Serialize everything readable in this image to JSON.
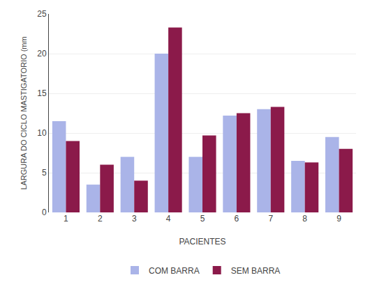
{
  "chart_data": {
    "type": "bar",
    "categories": [
      "1",
      "2",
      "3",
      "4",
      "5",
      "6",
      "7",
      "8",
      "9"
    ],
    "series": [
      {
        "name": "COM BARRA",
        "color": "#aab4e8",
        "values": [
          11.5,
          3.5,
          7.0,
          20.0,
          7.0,
          12.2,
          13.0,
          6.5,
          9.5
        ]
      },
      {
        "name": "SEM BARRA",
        "color": "#8b1a4a",
        "values": [
          9.0,
          6.0,
          4.0,
          23.3,
          9.7,
          12.5,
          13.3,
          6.3,
          8.0
        ]
      }
    ],
    "xlabel": "PACIENTES",
    "ylabel": "LARGURA DO CICLO MASTIGATORIO (mm",
    "ylim": [
      0,
      25
    ],
    "yticks": [
      0,
      5,
      10,
      15,
      20,
      25
    ],
    "grid": true,
    "legend": "bottom"
  }
}
